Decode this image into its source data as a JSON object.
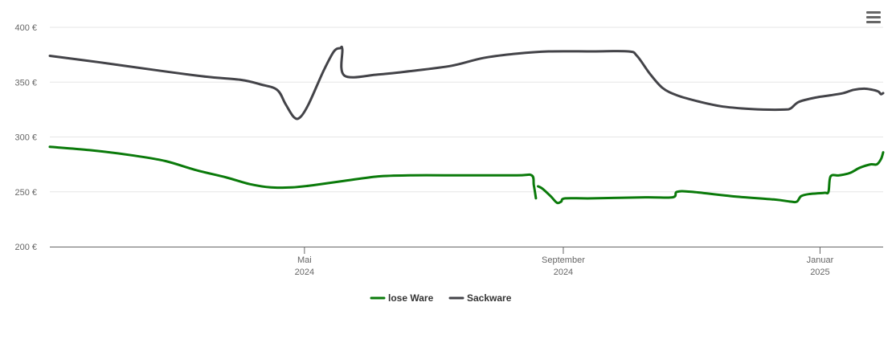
{
  "chart_data": {
    "type": "line",
    "y_axis": {
      "min": 200,
      "max": 400,
      "ticks": [
        {
          "value": 200,
          "label": "200 €"
        },
        {
          "value": 250,
          "label": "250 €"
        },
        {
          "value": 300,
          "label": "300 €"
        },
        {
          "value": 350,
          "label": "350 €"
        },
        {
          "value": 400,
          "label": "400 €"
        }
      ],
      "grid": true
    },
    "x_axis": {
      "range": [
        "2024-01-01",
        "2025-01-31"
      ],
      "ticks": [
        {
          "date": "2024-05-01",
          "month": "Mai",
          "year": "2024"
        },
        {
          "date": "2024-09-01",
          "month": "September",
          "year": "2024"
        },
        {
          "date": "2025-01-01",
          "month": "Januar",
          "year": "2025"
        }
      ]
    },
    "legend_position": "bottom-center",
    "series": [
      {
        "name": "lose Ware",
        "color": "#0a7a0a",
        "segments": [
          [
            [
              "2024-01-01",
              291
            ],
            [
              "2024-01-20",
              288
            ],
            [
              "2024-02-10",
              283
            ],
            [
              "2024-02-25",
              278
            ],
            [
              "2024-03-10",
              270
            ],
            [
              "2024-03-25",
              263
            ],
            [
              "2024-04-05",
              257
            ],
            [
              "2024-04-15",
              254
            ],
            [
              "2024-04-25",
              254
            ],
            [
              "2024-05-05",
              256
            ],
            [
              "2024-05-20",
              260
            ],
            [
              "2024-06-05",
              264
            ],
            [
              "2024-06-20",
              265
            ],
            [
              "2024-07-15",
              265
            ],
            [
              "2024-08-10",
              265
            ],
            [
              "2024-08-17",
              265
            ],
            [
              "2024-08-18",
              256
            ],
            [
              "2024-08-19",
              244
            ]
          ],
          [
            [
              "2024-08-20",
              255
            ],
            [
              "2024-08-22",
              253
            ],
            [
              "2024-08-26",
              246
            ],
            [
              "2024-08-29",
              240
            ],
            [
              "2024-08-31",
              241
            ],
            [
              "2024-09-02",
              244
            ],
            [
              "2024-09-15",
              244
            ],
            [
              "2024-10-10",
              245
            ],
            [
              "2024-10-23",
              245
            ],
            [
              "2024-10-25",
              250
            ],
            [
              "2024-11-01",
              250
            ],
            [
              "2024-11-20",
              246
            ],
            [
              "2024-12-10",
              243
            ],
            [
              "2024-12-18",
              241
            ],
            [
              "2024-12-21",
              241
            ],
            [
              "2024-12-23",
              246
            ],
            [
              "2024-12-27",
              248
            ],
            [
              "2025-01-03",
              249
            ],
            [
              "2025-01-05",
              250
            ],
            [
              "2025-01-06",
              264
            ],
            [
              "2025-01-10",
              265
            ],
            [
              "2025-01-15",
              267
            ],
            [
              "2025-01-20",
              272
            ],
            [
              "2025-01-25",
              275
            ],
            [
              "2025-01-28",
              275
            ],
            [
              "2025-01-30",
              280
            ],
            [
              "2025-01-31",
              286
            ]
          ]
        ]
      },
      {
        "name": "Sackware",
        "color": "#434348",
        "segments": [
          [
            [
              "2024-01-01",
              374
            ],
            [
              "2024-01-25",
              368
            ],
            [
              "2024-02-20",
              361
            ],
            [
              "2024-03-15",
              355
            ],
            [
              "2024-04-01",
              352
            ],
            [
              "2024-04-10",
              348
            ],
            [
              "2024-04-18",
              343
            ],
            [
              "2024-04-22",
              330
            ],
            [
              "2024-04-26",
              318
            ],
            [
              "2024-04-29",
              318
            ],
            [
              "2024-05-03",
              330
            ],
            [
              "2024-05-10",
              360
            ],
            [
              "2024-05-15",
              378
            ],
            [
              "2024-05-18",
              381
            ],
            [
              "2024-05-19",
              380
            ],
            [
              "2024-05-20",
              356
            ],
            [
              "2024-06-05",
              357
            ],
            [
              "2024-06-20",
              360
            ],
            [
              "2024-07-10",
              365
            ],
            [
              "2024-07-25",
              372
            ],
            [
              "2024-08-10",
              376
            ],
            [
              "2024-08-25",
              378
            ],
            [
              "2024-09-15",
              378
            ],
            [
              "2024-10-02",
              378
            ],
            [
              "2024-10-06",
              374
            ],
            [
              "2024-10-12",
              358
            ],
            [
              "2024-10-18",
              345
            ],
            [
              "2024-10-25",
              338
            ],
            [
              "2024-11-05",
              332
            ],
            [
              "2024-11-15",
              328
            ],
            [
              "2024-11-25",
              326
            ],
            [
              "2024-12-05",
              325
            ],
            [
              "2024-12-15",
              325
            ],
            [
              "2024-12-18",
              326
            ],
            [
              "2024-12-22",
              332
            ],
            [
              "2024-12-30",
              336
            ],
            [
              "2025-01-06",
              338
            ],
            [
              "2025-01-12",
              340
            ],
            [
              "2025-01-17",
              343
            ],
            [
              "2025-01-22",
              344
            ],
            [
              "2025-01-26",
              343
            ],
            [
              "2025-01-28",
              342
            ],
            [
              "2025-01-29",
              341
            ],
            [
              "2025-01-30",
              339
            ],
            [
              "2025-01-31",
              340
            ]
          ]
        ]
      }
    ]
  }
}
